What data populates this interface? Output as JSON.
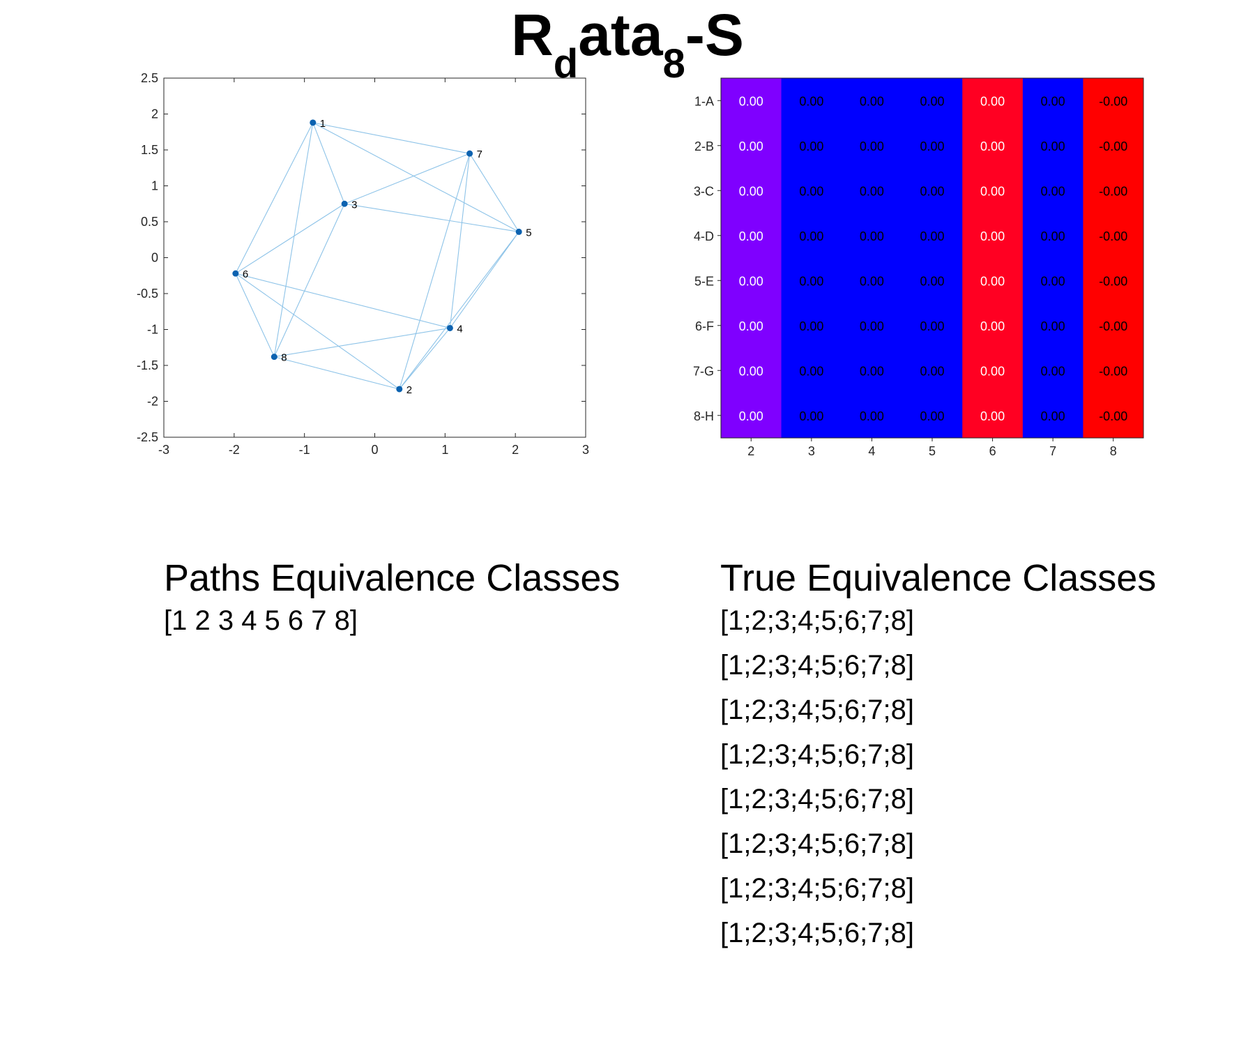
{
  "title": {
    "main": "R",
    "sub1": "d",
    "mid": "ata",
    "sub2": "8",
    "tail": "-S"
  },
  "colors": {
    "edge": "#8dc3e8",
    "node": "#0b62b0",
    "purple": "#7f00ff",
    "blue": "#0000ff",
    "red": "#ff0022",
    "redDeep": "#ff0000"
  },
  "chart_data": [
    {
      "type": "scatter",
      "subtype": "graph",
      "xlim": [
        -3,
        3
      ],
      "ylim": [
        -2.5,
        2.5
      ],
      "xticks": [
        -3,
        -2,
        -1,
        0,
        1,
        2,
        3
      ],
      "yticks": [
        -2.5,
        -2,
        -1.5,
        -1,
        -0.5,
        0,
        0.5,
        1,
        1.5,
        2,
        2.5
      ],
      "xtick_labels": [
        "-3",
        "-2",
        "-1",
        "0",
        "1",
        "2",
        "3"
      ],
      "ytick_labels": [
        "-2.5",
        "-2",
        "-1.5",
        "-1",
        "-0.5",
        "0",
        "0.5",
        "1",
        "1.5",
        "2",
        "2.5"
      ],
      "nodes": [
        {
          "label": "1",
          "x": -0.88,
          "y": 1.88
        },
        {
          "label": "2",
          "x": 0.35,
          "y": -1.83
        },
        {
          "label": "3",
          "x": -0.43,
          "y": 0.75
        },
        {
          "label": "4",
          "x": 1.07,
          "y": -0.98
        },
        {
          "label": "5",
          "x": 2.05,
          "y": 0.36
        },
        {
          "label": "6",
          "x": -1.98,
          "y": -0.22
        },
        {
          "label": "7",
          "x": 1.35,
          "y": 1.45
        },
        {
          "label": "8",
          "x": -1.43,
          "y": -1.38
        }
      ],
      "edges": [
        [
          "1",
          "7"
        ],
        [
          "1",
          "3"
        ],
        [
          "1",
          "5"
        ],
        [
          "1",
          "6"
        ],
        [
          "1",
          "8"
        ],
        [
          "3",
          "7"
        ],
        [
          "3",
          "5"
        ],
        [
          "3",
          "6"
        ],
        [
          "3",
          "8"
        ],
        [
          "7",
          "5"
        ],
        [
          "7",
          "4"
        ],
        [
          "7",
          "2"
        ],
        [
          "5",
          "4"
        ],
        [
          "5",
          "2"
        ],
        [
          "6",
          "4"
        ],
        [
          "6",
          "8"
        ],
        [
          "6",
          "2"
        ],
        [
          "8",
          "4"
        ],
        [
          "8",
          "2"
        ],
        [
          "4",
          "2"
        ]
      ]
    },
    {
      "type": "heatmap",
      "columns": [
        "2",
        "3",
        "4",
        "5",
        "6",
        "7",
        "8"
      ],
      "rows": [
        "1-A",
        "2-B",
        "3-C",
        "4-D",
        "5-E",
        "6-F",
        "7-G",
        "8-H"
      ],
      "column_colors": [
        "purple",
        "blue",
        "blue",
        "blue",
        "red",
        "blue",
        "redDeep"
      ],
      "column_text_colors": [
        "#ffffff",
        "#000000",
        "#000000",
        "#000000",
        "#ffffff",
        "#000000",
        "#000000"
      ],
      "values": [
        [
          "0.00",
          "0.00",
          "0.00",
          "0.00",
          "0.00",
          "0.00",
          "-0.00"
        ],
        [
          "0.00",
          "0.00",
          "0.00",
          "0.00",
          "0.00",
          "0.00",
          "-0.00"
        ],
        [
          "0.00",
          "0.00",
          "0.00",
          "0.00",
          "0.00",
          "0.00",
          "-0.00"
        ],
        [
          "0.00",
          "0.00",
          "0.00",
          "0.00",
          "0.00",
          "0.00",
          "-0.00"
        ],
        [
          "0.00",
          "0.00",
          "0.00",
          "0.00",
          "0.00",
          "0.00",
          "-0.00"
        ],
        [
          "0.00",
          "0.00",
          "0.00",
          "0.00",
          "0.00",
          "0.00",
          "-0.00"
        ],
        [
          "0.00",
          "0.00",
          "0.00",
          "0.00",
          "0.00",
          "0.00",
          "-0.00"
        ],
        [
          "0.00",
          "0.00",
          "0.00",
          "0.00",
          "0.00",
          "0.00",
          "-0.00"
        ]
      ]
    }
  ],
  "paths": {
    "heading": "Paths Equivalence Classes",
    "lines": [
      "[1 2 3 4 5 6 7 8]"
    ]
  },
  "true_classes": {
    "heading": "True Equivalence Classes",
    "lines": [
      "[1;2;3;4;5;6;7;8]",
      "[1;2;3;4;5;6;7;8]",
      "[1;2;3;4;5;6;7;8]",
      "[1;2;3;4;5;6;7;8]",
      "[1;2;3;4;5;6;7;8]",
      "[1;2;3;4;5;6;7;8]",
      "[1;2;3;4;5;6;7;8]",
      "[1;2;3;4;5;6;7;8]"
    ]
  }
}
